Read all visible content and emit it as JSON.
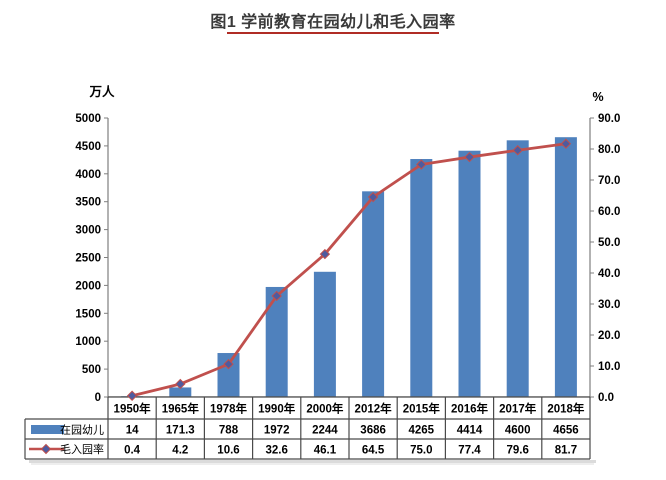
{
  "title": "图1  学前教育在园幼儿和毛入园率",
  "title_underline_color": "#b02c25",
  "chart_data": {
    "type": "combo",
    "title": "图1 学前教育在园幼儿和毛入园率",
    "categories": [
      "1950年",
      "1965年",
      "1978年",
      "1990年",
      "2000年",
      "2012年",
      "2015年",
      "2016年",
      "2017年",
      "2018年"
    ],
    "series": [
      {
        "name": "在园幼儿",
        "type": "bar",
        "axis": "left",
        "color": "#4f81bd",
        "values": [
          14,
          171.3,
          788,
          1972,
          2244,
          3686,
          4265,
          4414,
          4600,
          4656
        ]
      },
      {
        "name": "毛入园率",
        "type": "line",
        "axis": "right",
        "color": "#c0504d",
        "marker_shape": "diamond",
        "marker_fill": "#4e5b9f",
        "values": [
          0.4,
          4.2,
          10.6,
          32.6,
          46.1,
          64.5,
          75.0,
          77.4,
          79.6,
          81.7
        ]
      }
    ],
    "left_axis": {
      "label": "万人",
      "min": 0,
      "max": 5000,
      "step": 500
    },
    "right_axis": {
      "label": "%",
      "min": 0,
      "max": 90,
      "step": 10,
      "tick_decimals": 1
    },
    "grid": false,
    "legend_position": "data-table-left"
  },
  "colors": {
    "axis": "#7f7f7f",
    "table_border": "#4a4a4a",
    "tick_text": "#000000",
    "title_text": "#3a3a3a",
    "shadow": "#bdbdbd"
  }
}
